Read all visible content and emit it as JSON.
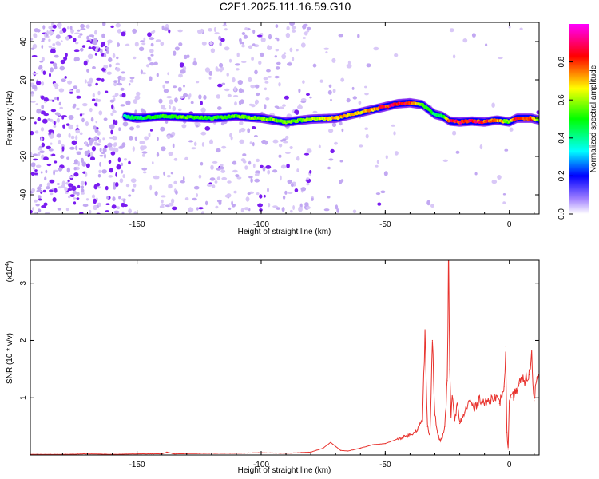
{
  "title": "C2E1.2025.111.16.59.G10",
  "colors": {
    "snr_line": "#e8332e",
    "axis": "#000000"
  },
  "chart_data": [
    {
      "type": "heatmap",
      "name": "spectrogram",
      "xlabel": "Height of straight line (km)",
      "ylabel": "Frequency (Hz)",
      "xlim": [
        -193,
        12
      ],
      "ylim": [
        -50,
        50
      ],
      "xticks": [
        -150,
        -100,
        -50,
        0
      ],
      "yticks": [
        -40,
        -20,
        0,
        20,
        40
      ],
      "colorbar": {
        "label": "Normalized spectral amplitude",
        "range": [
          0,
          1
        ],
        "ticks": [
          "0.0",
          "0.2",
          "0.4",
          "0.6",
          "0.8"
        ],
        "colormap": [
          "#ffffff",
          "#8b00ff",
          "#0000ff",
          "#00ffff",
          "#00ff00",
          "#ffff00",
          "#ff0000",
          "#ff00ff"
        ]
      },
      "ridge": {
        "x": [
          -155,
          -150,
          -140,
          -130,
          -120,
          -110,
          -100,
          -90,
          -80,
          -70,
          -60,
          -50,
          -45,
          -40,
          -35,
          -30,
          -27,
          -24,
          -20,
          -15,
          -10,
          -5,
          0,
          3,
          6,
          9,
          12
        ],
        "y": [
          1,
          0,
          1,
          0.5,
          0,
          1,
          0,
          -2,
          -0.5,
          0,
          3,
          6,
          7.5,
          8,
          7,
          2,
          1,
          -1.5,
          -2,
          -1.5,
          -2,
          -1,
          -2,
          0,
          0,
          0,
          -1
        ],
        "peak_amplitude": [
          0.45,
          0.5,
          0.55,
          0.6,
          0.55,
          0.6,
          0.65,
          0.6,
          0.65,
          0.8,
          0.75,
          0.9,
          0.95,
          0.9,
          0.6,
          0.5,
          0.45,
          0.9,
          0.95,
          0.95,
          0.9,
          0.85,
          0.6,
          0.9,
          0.95,
          0.9,
          0.6
        ]
      }
    },
    {
      "type": "line",
      "name": "snr",
      "xlabel": "Height of straight line (km)",
      "ylabel": "SNR (10 * v/v)",
      "unit_label": "(x10",
      "unit_exponent": "4",
      "unit_close": ")",
      "xlim": [
        -193,
        12
      ],
      "ylim": [
        0,
        3.4
      ],
      "xticks": [
        -150,
        -100,
        -50,
        0
      ],
      "yticks": [
        1,
        2,
        3
      ],
      "series": [
        {
          "x": [
            -193,
            -180,
            -170,
            -160,
            -150,
            -140,
            -138,
            -135,
            -120,
            -110,
            -100,
            -90,
            -80,
            -75,
            -72,
            -70,
            -68,
            -65,
            -60,
            -55,
            -50,
            -45,
            -40,
            -37,
            -35,
            -34,
            -33,
            -32,
            -31,
            -30,
            -29,
            -28,
            -27,
            -26,
            -25,
            -24.5,
            -24,
            -23.5,
            -23,
            -22,
            -21,
            -20,
            -18,
            -16,
            -14,
            -12,
            -10,
            -8,
            -6,
            -4,
            -2,
            -1.5,
            -1,
            -0.5,
            0,
            1,
            2,
            4,
            6,
            8,
            9,
            10,
            11,
            12
          ],
          "y": [
            0.01,
            0.01,
            0.02,
            0.01,
            0.02,
            0.02,
            0.05,
            0.02,
            0.03,
            0.03,
            0.04,
            0.03,
            0.05,
            0.12,
            0.22,
            0.15,
            0.08,
            0.07,
            0.12,
            0.18,
            0.2,
            0.28,
            0.35,
            0.45,
            0.6,
            2.1,
            0.5,
            0.35,
            2.0,
            0.7,
            0.4,
            0.25,
            0.3,
            0.5,
            1.3,
            3.4,
            1.5,
            0.7,
            1.0,
            0.6,
            0.9,
            0.55,
            0.75,
            0.95,
            0.8,
            1.0,
            0.9,
            0.95,
            1.05,
            0.9,
            1.2,
            1.9,
            0.4,
            0.1,
            0.9,
            1.0,
            1.05,
            1.25,
            1.3,
            1.4,
            1.7,
            0.95,
            1.35,
            1.45
          ]
        }
      ]
    }
  ]
}
